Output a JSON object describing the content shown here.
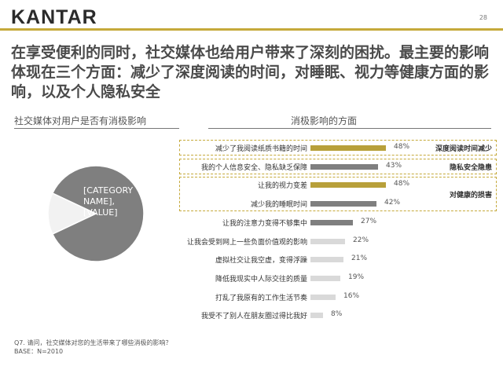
{
  "header": {
    "brand": "KANTAR",
    "page_number": "28",
    "accent_color": "#c5a93a"
  },
  "headline": "在享受便利的同时，社交媒体也给用户带来了深刻的困扰。最主要的影响体现在三个方面：减少了深度阅读的时间，对睡眠、视力等健康方面的影响，以及个人隐私安全",
  "left_subtitle": "社交媒体对用户是否有消极影响",
  "right_subtitle": "消极影响的方面",
  "chart_data": [
    {
      "type": "pie",
      "title": "社交媒体对用户是否有消极影响",
      "slices": [
        {
          "label": "[CATEGORY NAME], [VALUE]",
          "share_percent": 86,
          "color": "#7f7f7f"
        },
        {
          "label": "",
          "share_percent": 14,
          "color": "#f2f2f2"
        }
      ]
    },
    {
      "type": "bar",
      "orientation": "horizontal",
      "title": "消极影响的方面",
      "xlim": [
        0,
        60
      ],
      "categories": [
        "减少了我阅读纸质书籍的时间",
        "我的个人信息安全、隐私缺乏保障",
        "让我的视力变差",
        "减少我的睡眠时间",
        "让我的注意力变得不够集中",
        "让我会受到网上一些负面价值观的影响",
        "虚拟社交让我空虚，变得浮躁",
        "降低我现实中人际交往的质量",
        "打乱了我原有的工作生活节奏",
        "我受不了别人在朋友圈过得比我好"
      ],
      "values": [
        48,
        43,
        48,
        42,
        27,
        22,
        21,
        19,
        16,
        8
      ],
      "value_labels": [
        "48%",
        "43%",
        "48%",
        "42%",
        "27%",
        "22%",
        "21%",
        "19%",
        "16%",
        "8%"
      ],
      "bar_colors": [
        "#b8a03a",
        "#7f7f7f",
        "#b8a03a",
        "#7f7f7f",
        "#7f7f7f",
        "#d9d9d9",
        "#d9d9d9",
        "#d9d9d9",
        "#d9d9d9",
        "#d9d9d9"
      ],
      "groups": [
        {
          "label": "深度阅读时间减少",
          "rows": [
            0
          ]
        },
        {
          "label": "隐私安全隐患",
          "rows": [
            1
          ]
        },
        {
          "label": "对健康的损害",
          "rows": [
            2,
            3
          ]
        }
      ]
    }
  ],
  "footnote": {
    "question": "Q7. 请问，社交媒体对您的生活带来了哪些消极的影响？",
    "base": "BASE：N=2010"
  }
}
